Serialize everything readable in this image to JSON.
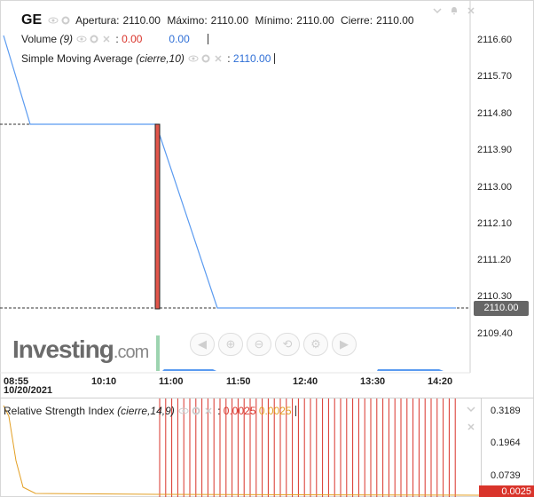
{
  "header": {
    "symbol": "GE",
    "open_label": "Apertura:",
    "open_value": "2110.00",
    "high_label": "Máximo:",
    "high_value": "2110.00",
    "low_label": "Mínimo:",
    "low_value": "2110.00",
    "close_label": "Cierre:",
    "close_value": "2110.00"
  },
  "volume_legend": {
    "name": "Volume",
    "params": "(9)",
    "value1": "0.00",
    "value2": "0.00"
  },
  "sma_legend": {
    "name": "Simple Moving Average",
    "params": "(cierre,10)",
    "value": "2110.00"
  },
  "price_axis": {
    "ticks": [
      "2116.60",
      "2115.70",
      "2114.80",
      "2113.90",
      "2113.00",
      "2112.10",
      "2111.20",
      "2110.30",
      "2109.40"
    ],
    "current_price": "2110.00"
  },
  "time_axis": {
    "labels": [
      "08:55",
      "10:10",
      "11:00",
      "11:50",
      "12:40",
      "13:30",
      "14:20"
    ],
    "date": "10/20/2021"
  },
  "watermark": {
    "brand": "Investing",
    "suffix": ".com"
  },
  "rsi": {
    "name": "Relative Strength Index",
    "params": "(cierre,14,9)",
    "value1": "0.0025",
    "value2": "0.0025",
    "ticks": [
      "0.3189",
      "0.1964",
      "0.0739"
    ],
    "current": "0.0025"
  },
  "colors": {
    "sma_line": "#5b9bf0",
    "candle": "#e2554a",
    "rsi_line": "#d9342b",
    "rsi_signal": "#e39f23",
    "price_tag": "#666666"
  },
  "icons": [
    "eye-icon",
    "gear-icon",
    "close-icon",
    "chevron-down-icon",
    "bell-icon",
    "arrow-left-icon",
    "zoom-in-icon",
    "zoom-out-icon",
    "reset-icon",
    "arrow-right-icon"
  ]
}
